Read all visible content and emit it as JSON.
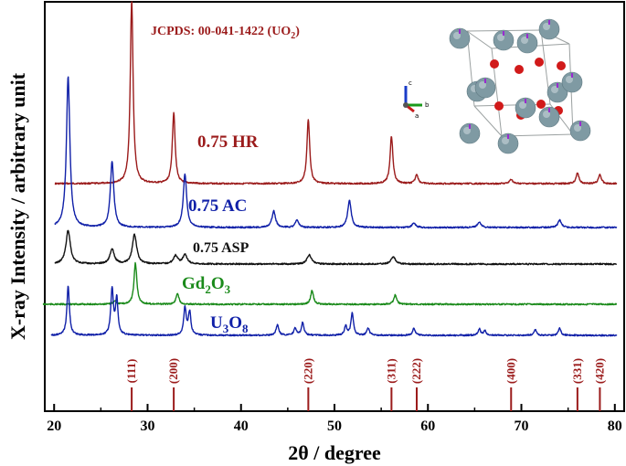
{
  "chart_data": {
    "type": "line",
    "title": "",
    "xlabel": "2θ / degree",
    "ylabel": "X-ray Intensity / arbitrary unit",
    "xlim": [
      19,
      81
    ],
    "xticks": [
      20,
      30,
      40,
      50,
      60,
      70,
      80
    ],
    "grid": false,
    "reference_label": "JCPDS: 00-041-1422 (UO",
    "reference_label_sub": "2",
    "reference_label_end": ")",
    "reference_peaks": [
      {
        "hkl": "(111)",
        "x": 28.3
      },
      {
        "hkl": "(200)",
        "x": 32.8
      },
      {
        "hkl": "(220)",
        "x": 47.2
      },
      {
        "hkl": "(311)",
        "x": 56.1
      },
      {
        "hkl": "(222)",
        "x": 58.8
      },
      {
        "hkl": "(400)",
        "x": 68.9
      },
      {
        "hkl": "(331)",
        "x": 76.0
      },
      {
        "hkl": "(420)",
        "x": 78.4
      }
    ],
    "series": [
      {
        "name": "0.75 HR",
        "label_main": "0.75 HR",
        "label_sub": "",
        "label_end": "",
        "color": "#9b1b1b",
        "peaks": [
          [
            28.3,
            200
          ],
          [
            32.8,
            78
          ],
          [
            47.2,
            70
          ],
          [
            56.1,
            52
          ],
          [
            58.8,
            10
          ],
          [
            68.9,
            5
          ],
          [
            76.0,
            12
          ],
          [
            78.4,
            10
          ]
        ]
      },
      {
        "name": "0.75 AC",
        "label_main": "0.75 AC",
        "label_sub": "",
        "label_end": "",
        "color": "#1020a8",
        "peaks": [
          [
            21.5,
            165
          ],
          [
            26.2,
            72
          ],
          [
            34.0,
            58
          ],
          [
            43.5,
            18
          ],
          [
            46.0,
            8
          ],
          [
            51.6,
            30
          ],
          [
            58.5,
            5
          ],
          [
            65.5,
            6
          ],
          [
            74.1,
            8
          ]
        ]
      },
      {
        "name": "0.75 ASP",
        "label_main": "0.75 ASP",
        "label_sub": "",
        "label_end": "",
        "color": "#111111",
        "peaks": [
          [
            21.5,
            37
          ],
          [
            26.2,
            16
          ],
          [
            28.6,
            32
          ],
          [
            33.0,
            9
          ],
          [
            34.0,
            10
          ],
          [
            47.3,
            10
          ],
          [
            56.3,
            8
          ]
        ]
      },
      {
        "name": "Gd2O3",
        "label_main": "Gd",
        "label_sub": "2",
        "label_end": "O",
        "label_sub2": "3",
        "color": "#1a8a1a",
        "peaks": [
          [
            28.7,
            45
          ],
          [
            33.2,
            12
          ],
          [
            47.6,
            15
          ],
          [
            56.5,
            10
          ],
          [
            26.5,
            4
          ]
        ]
      },
      {
        "name": "U3O8",
        "label_main": "U",
        "label_sub": "3",
        "label_end": "O",
        "label_sub2": "8",
        "color": "#1020a8",
        "peaks": [
          [
            21.5,
            54
          ],
          [
            26.2,
            50
          ],
          [
            26.7,
            40
          ],
          [
            34.0,
            30
          ],
          [
            34.5,
            25
          ],
          [
            43.9,
            12
          ],
          [
            45.8,
            8
          ],
          [
            46.6,
            14
          ],
          [
            51.2,
            10
          ],
          [
            51.9,
            24
          ],
          [
            53.6,
            8
          ],
          [
            58.5,
            8
          ],
          [
            65.5,
            7
          ],
          [
            66.1,
            5
          ],
          [
            71.5,
            6
          ],
          [
            74.1,
            8
          ]
        ]
      }
    ],
    "inset": {
      "description": "UO2 fluorite unit cell",
      "axis_labels": [
        "c",
        "b",
        "a"
      ],
      "colors": {
        "uranium": "#7f9aa3",
        "oxygen": "#d11a1a",
        "tip": "#9a2bd0",
        "cell_edge": "#9aa0a0"
      }
    }
  }
}
